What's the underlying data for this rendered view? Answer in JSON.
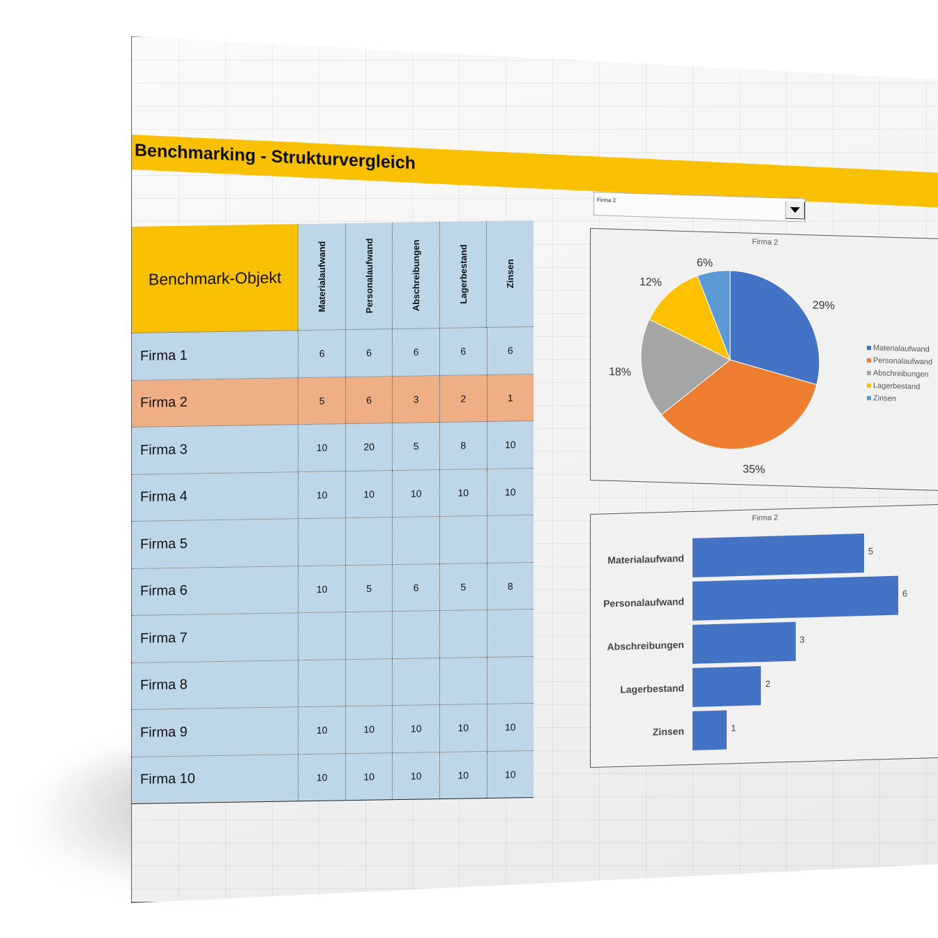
{
  "title": "Benchmarking - Strukturvergleich",
  "selector": {
    "value": "Firma 2",
    "icon": "chevron-down-icon"
  },
  "table": {
    "header": "Benchmark-Objekt",
    "columns": [
      "Materialaufwand",
      "Personalaufwand",
      "Abschreibungen",
      "Lagerbestand",
      "Zinsen"
    ],
    "rows": [
      {
        "name": "Firma 1",
        "values": [
          "6",
          "6",
          "6",
          "6",
          "6"
        ]
      },
      {
        "name": "Firma 2",
        "values": [
          "5",
          "6",
          "3",
          "2",
          "1"
        ],
        "highlighted": true
      },
      {
        "name": "Firma 3",
        "values": [
          "10",
          "20",
          "5",
          "8",
          "10"
        ]
      },
      {
        "name": "Firma 4",
        "values": [
          "10",
          "10",
          "10",
          "10",
          "10"
        ]
      },
      {
        "name": "Firma 5",
        "values": [
          "",
          "",
          "",
          "",
          ""
        ]
      },
      {
        "name": "Firma 6",
        "values": [
          "10",
          "5",
          "6",
          "5",
          "8"
        ]
      },
      {
        "name": "Firma 7",
        "values": [
          "",
          "",
          "",
          "",
          ""
        ]
      },
      {
        "name": "Firma 8",
        "values": [
          "",
          "",
          "",
          "",
          ""
        ]
      },
      {
        "name": "Firma 9",
        "values": [
          "10",
          "10",
          "10",
          "10",
          "10"
        ]
      },
      {
        "name": "Firma 10",
        "values": [
          "10",
          "10",
          "10",
          "10",
          "10"
        ]
      }
    ]
  },
  "colors": {
    "header_yellow": "#f9c000",
    "cell_blue": "#bdd7e9",
    "highlight_orange": "#efae84",
    "series": [
      "#4472c4",
      "#ed7d31",
      "#a5a5a5",
      "#ffc000",
      "#5b9bd5"
    ]
  },
  "chart_data": [
    {
      "type": "pie",
      "title": "Firma 2",
      "categories": [
        "Materialaufwand",
        "Personalaufwand",
        "Abschreibungen",
        "Lagerbestand",
        "Zinsen"
      ],
      "values": [
        29,
        35,
        18,
        12,
        6
      ],
      "labels": [
        "29%",
        "35%",
        "18%",
        "12%",
        "6%"
      ],
      "legend_position": "right"
    },
    {
      "type": "bar",
      "orientation": "horizontal",
      "title": "Firma 2",
      "categories": [
        "Materialaufwand",
        "Personalaufwand",
        "Abschreibungen",
        "Lagerbestand",
        "Zinsen"
      ],
      "values": [
        5,
        6,
        3,
        2,
        1
      ],
      "xlabel": "",
      "ylabel": "",
      "xlim": [
        0,
        6
      ]
    }
  ]
}
